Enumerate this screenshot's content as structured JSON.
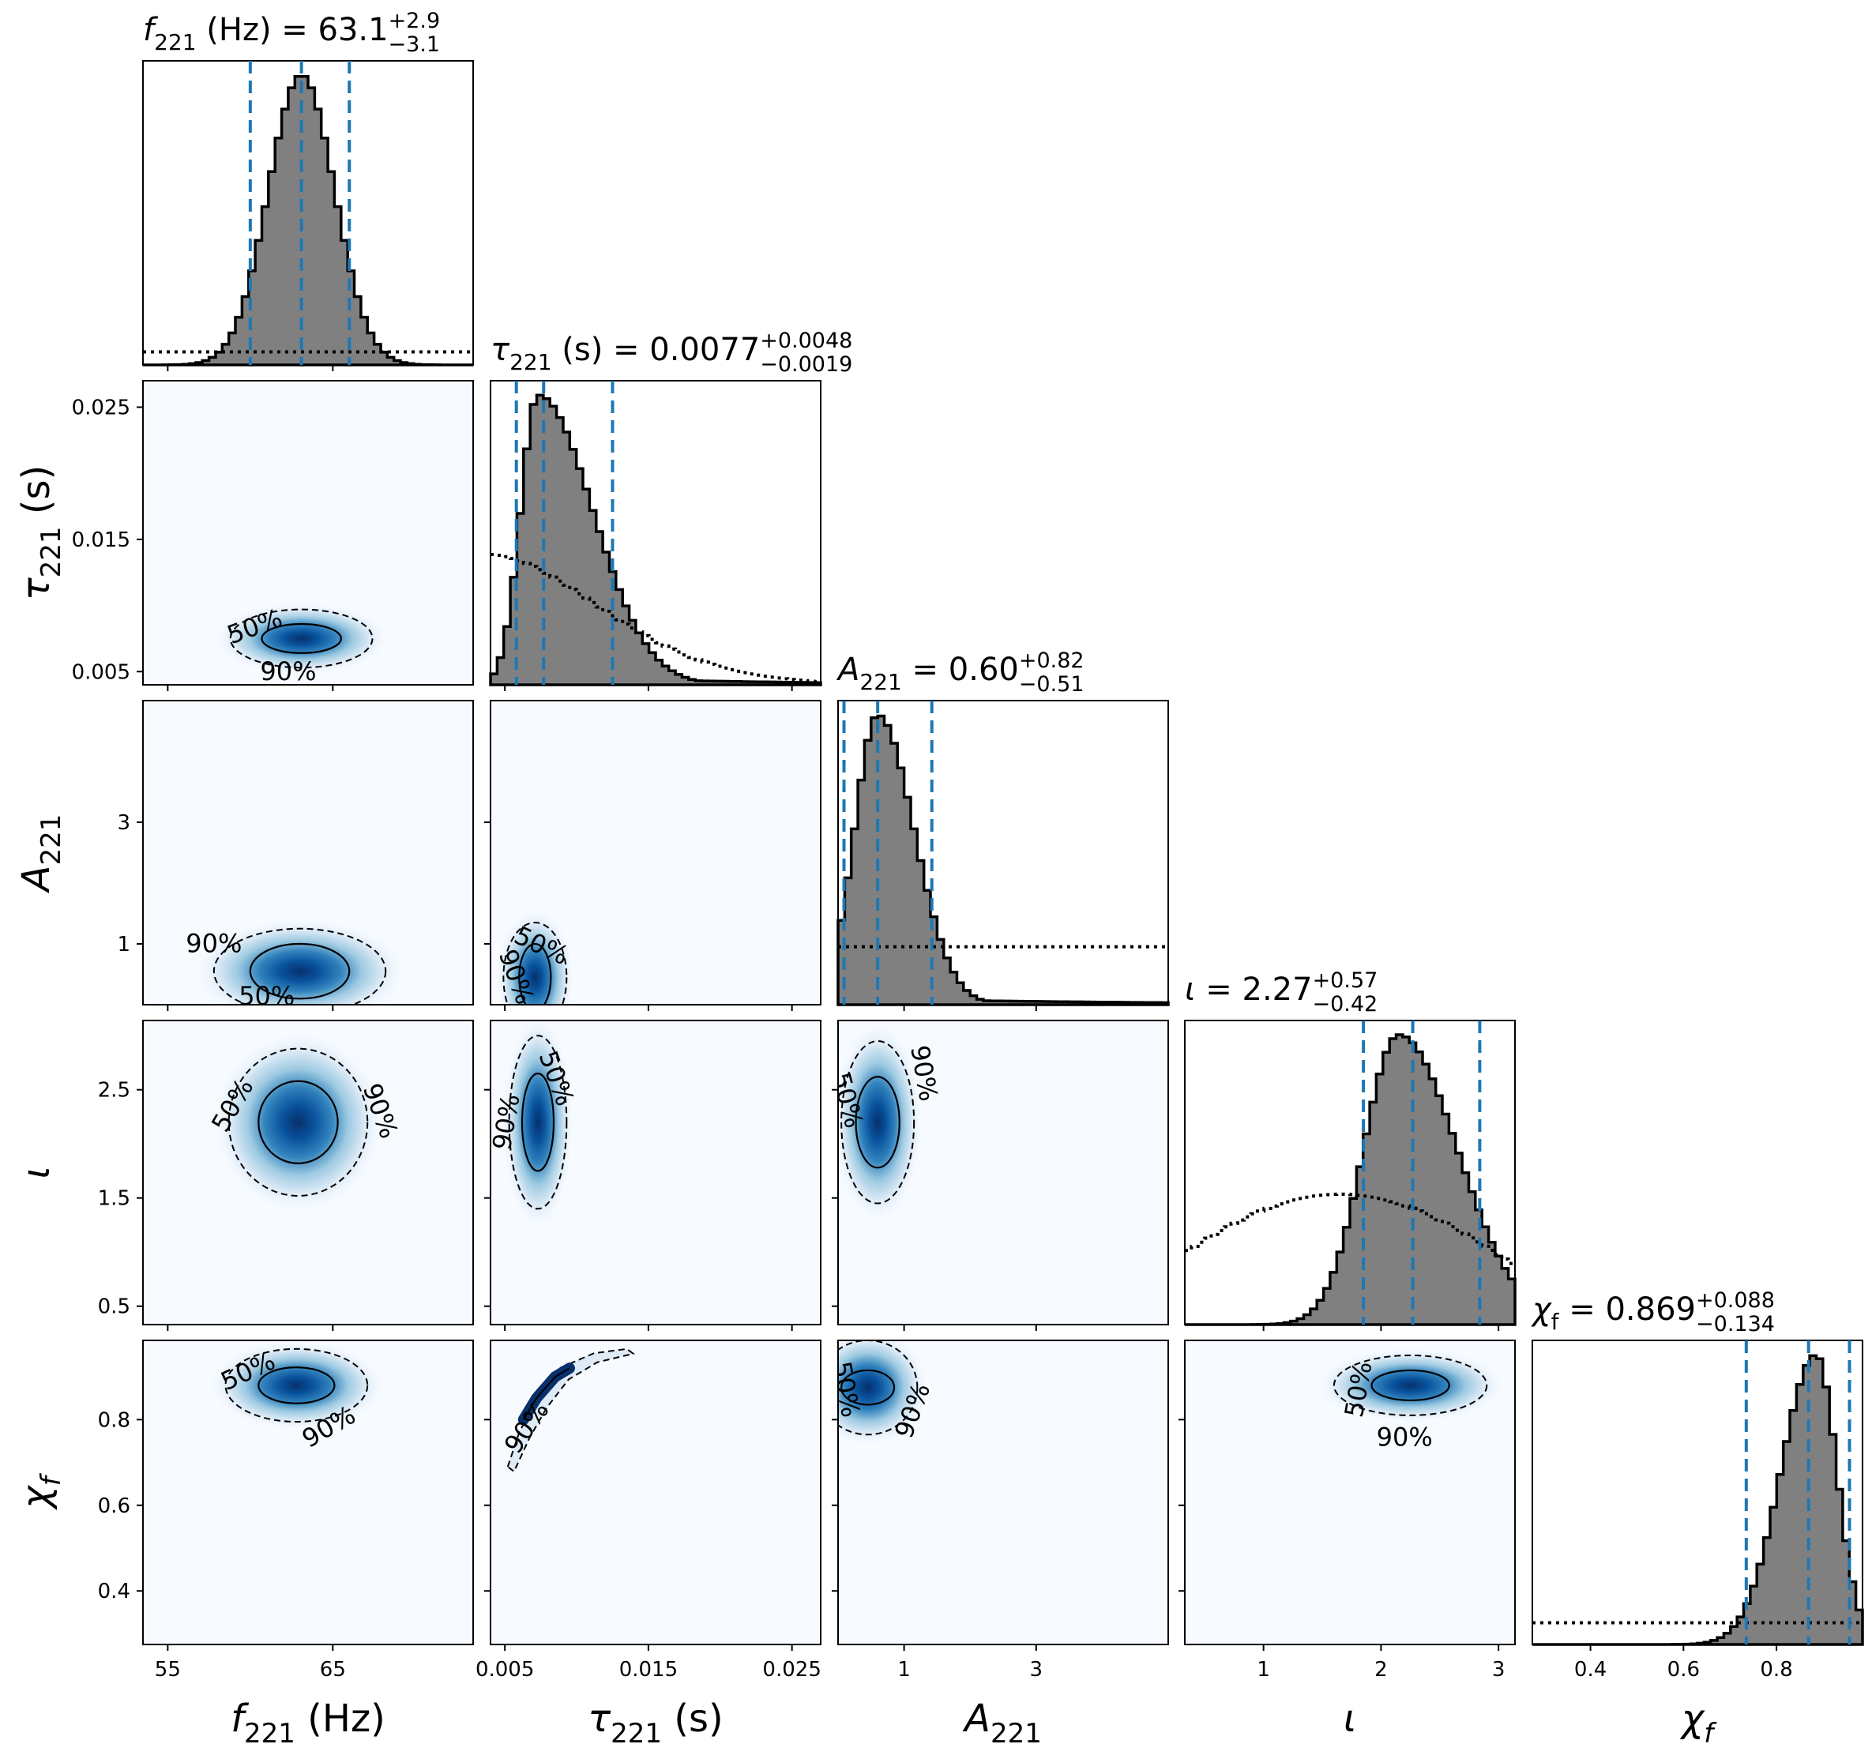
{
  "chart_data": {
    "type": "corner",
    "parameters": [
      {
        "key": "f221",
        "label": "f_221 (Hz)",
        "axis_label": "f221 (Hz)",
        "title_parts": {
          "sym": "f",
          "sub": "221",
          "unit": " (Hz)",
          "value": "63.1",
          "plus": "+2.9",
          "minus": "−3.1"
        },
        "range": [
          53.5,
          73.5
        ],
        "ticks": [
          55,
          65
        ],
        "tick_labels": [
          "55",
          "65"
        ],
        "median": 63.1,
        "bounds": [
          60.0,
          66.0
        ],
        "posterior_hist": {
          "center": 63.1,
          "sigma": 2.0,
          "skew": 0,
          "tail": 0
        },
        "prior_hist": {
          "shape": "flat",
          "level": 0.045
        }
      },
      {
        "key": "tau221",
        "label": "τ_221 (s)",
        "axis_label": "τ221 (s)",
        "title_parts": {
          "sym": "τ",
          "sub": "221",
          "unit": " (s)",
          "value": "0.0077",
          "plus": "+0.0048",
          "minus": "−0.0019"
        },
        "range": [
          0.004,
          0.027
        ],
        "ticks": [
          0.005,
          0.015,
          0.025
        ],
        "tick_labels": [
          "0.005",
          "0.015",
          "0.025"
        ],
        "median": 0.0077,
        "bounds": [
          0.0058,
          0.0125
        ],
        "posterior_hist": {
          "center": 0.0073,
          "sigma": 0.0012,
          "skew": 0.0026,
          "tail": 0.03
        },
        "prior_hist": {
          "shape": "decay",
          "level": 0.45
        }
      },
      {
        "key": "A221",
        "label": "A_221",
        "axis_label": "A221",
        "title_parts": {
          "sym": "A",
          "sub": "221",
          "unit": "",
          "value": "0.60",
          "plus": "+0.82",
          "minus": "−0.51"
        },
        "range": [
          0.0,
          5.0
        ],
        "ticks": [
          1,
          3
        ],
        "tick_labels": [
          "1",
          "3"
        ],
        "median": 0.6,
        "bounds": [
          0.09,
          1.42
        ],
        "posterior_hist": {
          "center": 0.6,
          "sigma": 0.35,
          "skew": 0.2,
          "tail": 0.02
        },
        "prior_hist": {
          "shape": "flat",
          "level": 0.2
        }
      },
      {
        "key": "iota",
        "label": "ι",
        "axis_label": "ι",
        "title_parts": {
          "sym": "ι",
          "sub": "",
          "unit": "",
          "value": "2.27",
          "plus": "+0.57",
          "minus": "−0.42"
        },
        "range": [
          0.33,
          3.14
        ],
        "ticks": [
          0.5,
          1.5,
          2.5
        ],
        "tick_labels": [
          "0.5",
          "1.5",
          "2.5"
        ],
        "x_ticks": [
          1,
          2,
          3
        ],
        "x_tick_labels": [
          "1",
          "2",
          "3"
        ],
        "median": 2.27,
        "bounds": [
          1.85,
          2.84
        ],
        "posterior_hist": {
          "center": 2.15,
          "sigma": 0.3,
          "skew": 0.2,
          "tail": 0
        },
        "prior_hist": {
          "shape": "sine",
          "level": 0.45
        }
      },
      {
        "key": "chif",
        "label": "χ_f",
        "axis_label": "χf",
        "title_parts": {
          "sym": "χ",
          "sub": "f",
          "unit": "",
          "value": "0.869",
          "plus": "+0.088",
          "minus": "−0.134"
        },
        "range": [
          0.275,
          0.985
        ],
        "ticks": [
          0.4,
          0.6,
          0.8
        ],
        "tick_labels": [
          "0.4",
          "0.6",
          "0.8"
        ],
        "median": 0.869,
        "bounds": [
          0.735,
          0.957
        ],
        "posterior_hist": {
          "center": 0.885,
          "sigma": 0.045,
          "skew": -0.03,
          "tail": 0
        },
        "prior_hist": {
          "shape": "flat",
          "level": 0.075
        }
      }
    ],
    "pairs": [
      {
        "x": "f221",
        "y": "tau221",
        "center": [
          63.1,
          0.0075
        ],
        "sd50": [
          2.4,
          0.0011
        ],
        "sd90": [
          4.3,
          0.0022
        ],
        "labels": [
          {
            "text": "50%",
            "x": 60.3,
            "y": 0.0083,
            "rot": -20
          },
          {
            "text": "90%",
            "x": 62.3,
            "y": 0.0049,
            "rot": 0
          }
        ]
      },
      {
        "x": "f221",
        "y": "A221",
        "center": [
          63.0,
          0.55
        ],
        "sd50": [
          3.0,
          0.45
        ],
        "sd90": [
          5.2,
          0.7
        ],
        "labels": [
          {
            "text": "90%",
            "x": 57.8,
            "y": 0.98,
            "rot": 0
          },
          {
            "text": "50%",
            "x": 61.0,
            "y": 0.12,
            "rot": 0
          }
        ]
      },
      {
        "x": "f221",
        "y": "iota",
        "center": [
          62.9,
          2.2
        ],
        "sd50": [
          2.4,
          0.38
        ],
        "sd90": [
          4.2,
          0.68
        ],
        "labels": [
          {
            "text": "50%",
            "x": 59.0,
            "y": 2.35,
            "rot": -60
          },
          {
            "text": "90%",
            "x": 67.8,
            "y": 2.3,
            "rot": 70
          }
        ]
      },
      {
        "x": "f221",
        "y": "chif",
        "center": [
          62.8,
          0.88
        ],
        "sd50": [
          2.3,
          0.042
        ],
        "sd90": [
          4.3,
          0.085
        ],
        "labels": [
          {
            "text": "50%",
            "x": 59.9,
            "y": 0.91,
            "rot": -25
          },
          {
            "text": "90%",
            "x": 64.8,
            "y": 0.78,
            "rot": -30
          }
        ]
      },
      {
        "x": "tau221",
        "y": "A221",
        "center": [
          0.0071,
          0.45
        ],
        "sd50": [
          0.0011,
          0.55
        ],
        "sd90": [
          0.0022,
          0.9
        ],
        "labels": [
          {
            "text": "50%",
            "x": 0.0075,
            "y": 0.95,
            "rot": 25
          },
          {
            "text": "90%",
            "x": 0.0057,
            "y": 0.45,
            "rot": 70
          }
        ]
      },
      {
        "x": "tau221",
        "y": "iota",
        "center": [
          0.0073,
          2.2
        ],
        "sd50": [
          0.0011,
          0.45
        ],
        "sd90": [
          0.002,
          0.8
        ],
        "labels": [
          {
            "text": "50%",
            "x": 0.0085,
            "y": 2.6,
            "rot": 70
          },
          {
            "text": "90%",
            "x": 0.0052,
            "y": 2.2,
            "rot": -80
          }
        ]
      },
      {
        "x": "tau221",
        "y": "chif",
        "type": "ridge",
        "center": [
          0.0078,
          0.86
        ],
        "labels": [
          {
            "text": "90%",
            "x": 0.0066,
            "y": 0.78,
            "rot": -55
          }
        ]
      },
      {
        "x": "A221",
        "y": "iota",
        "center": [
          0.6,
          2.2
        ],
        "sd50": [
          0.33,
          0.42
        ],
        "sd90": [
          0.55,
          0.75
        ],
        "labels": [
          {
            "text": "50%",
            "x": 0.12,
            "y": 2.4,
            "rot": 75
          },
          {
            "text": "90%",
            "x": 1.28,
            "y": 2.65,
            "rot": 80
          }
        ]
      },
      {
        "x": "A221",
        "y": "chif",
        "center": [
          0.45,
          0.875
        ],
        "sd50": [
          0.4,
          0.04
        ],
        "sd90": [
          0.75,
          0.11
        ],
        "labels": [
          {
            "text": "50%",
            "x": 0.1,
            "y": 0.87,
            "rot": 80
          },
          {
            "text": "90%",
            "x": 1.15,
            "y": 0.82,
            "rot": -70
          }
        ]
      },
      {
        "x": "iota",
        "y": "chif",
        "center": [
          2.25,
          0.88
        ],
        "sd50": [
          0.33,
          0.035
        ],
        "sd90": [
          0.65,
          0.07
        ],
        "labels": [
          {
            "text": "50%",
            "x": 1.82,
            "y": 0.87,
            "rot": -80
          },
          {
            "text": "90%",
            "x": 2.2,
            "y": 0.755,
            "rot": 0
          }
        ]
      }
    ],
    "contour_levels": [
      "50%",
      "90%"
    ],
    "colors": {
      "posterior_fill": "#808080",
      "posterior_edge": "#000000",
      "prior_line": "#000000",
      "quantile_line": "#1f77b4",
      "density_low": "#f7fbff",
      "density_high": "#08306b"
    }
  }
}
